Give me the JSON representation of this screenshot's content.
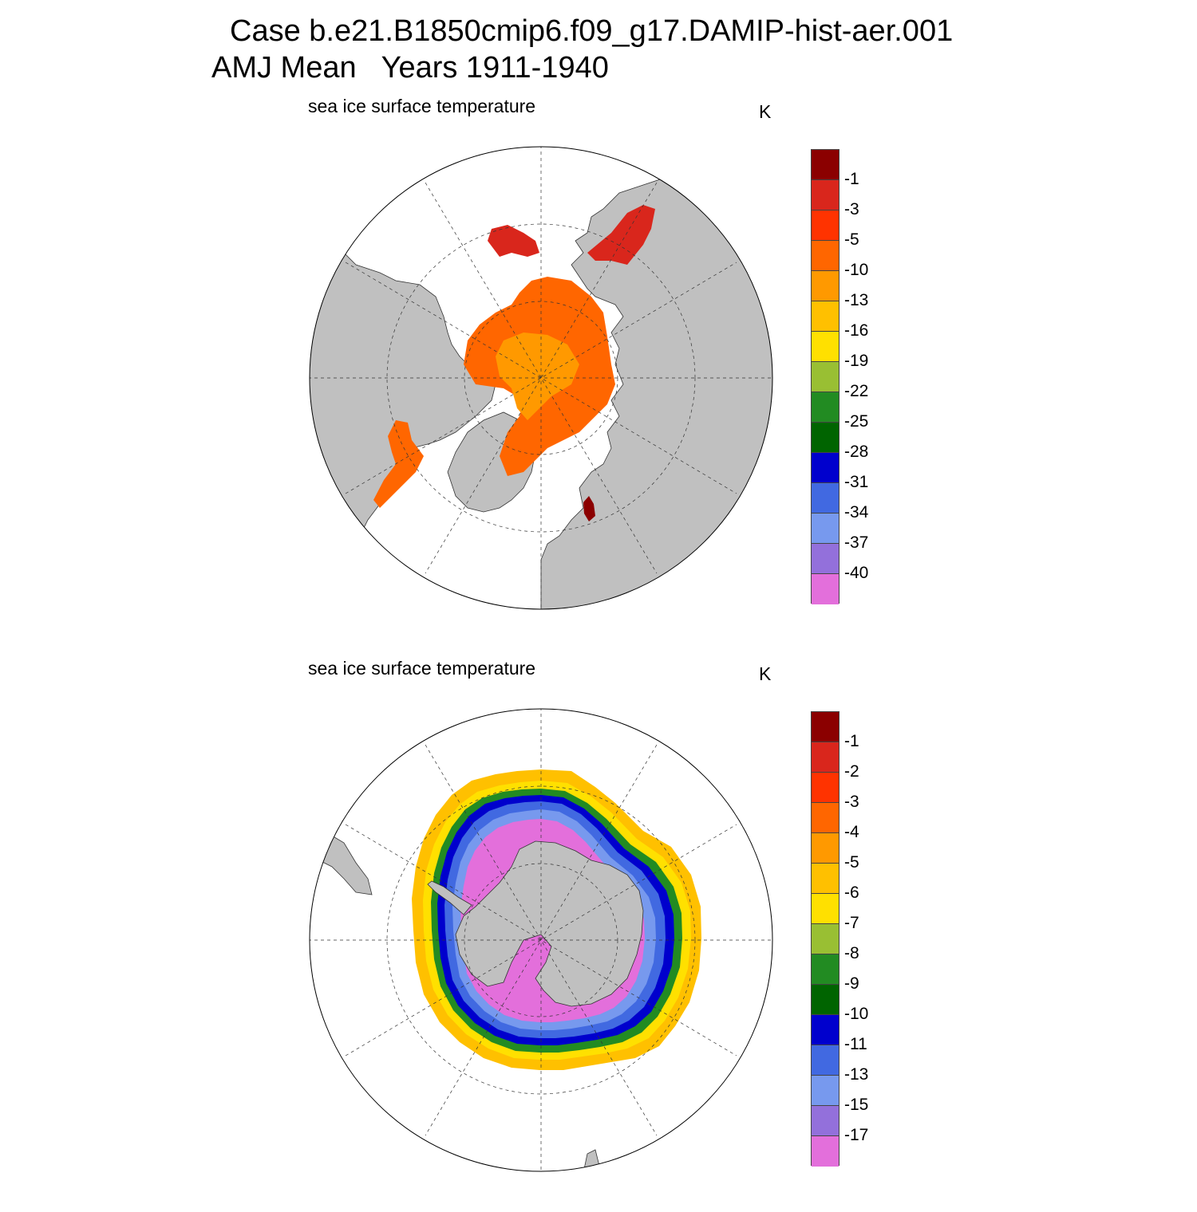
{
  "title": {
    "line1": "Case b.e21.B1850cmip6.f09_g17.DAMIP-hist-aer.001",
    "line2": "AMJ Mean   Years 1911-1940"
  },
  "panels": [
    {
      "subtitle": "sea ice surface temperature",
      "units": "K",
      "levels": [
        "-1",
        "-3",
        "-5",
        "-10",
        "-13",
        "-16",
        "-19",
        "-22",
        "-25",
        "-28",
        "-31",
        "-34",
        "-37",
        "-40"
      ]
    },
    {
      "subtitle": "sea ice surface temperature",
      "units": "K",
      "levels": [
        "-1",
        "-2",
        "-3",
        "-4",
        "-5",
        "-6",
        "-7",
        "-8",
        "-9",
        "-10",
        "-11",
        "-13",
        "-15",
        "-17"
      ]
    }
  ],
  "colors": {
    "palette": [
      "#8b0000",
      "#d9261c",
      "#ff3300",
      "#ff6600",
      "#ff9900",
      "#ffc000",
      "#ffe000",
      "#99bf33",
      "#228b22",
      "#006400",
      "#0000cd",
      "#4169e1",
      "#7799ee",
      "#9370db",
      "#e36fdb"
    ],
    "land": "#c0c0c0",
    "ocean": "#ffffff"
  }
}
